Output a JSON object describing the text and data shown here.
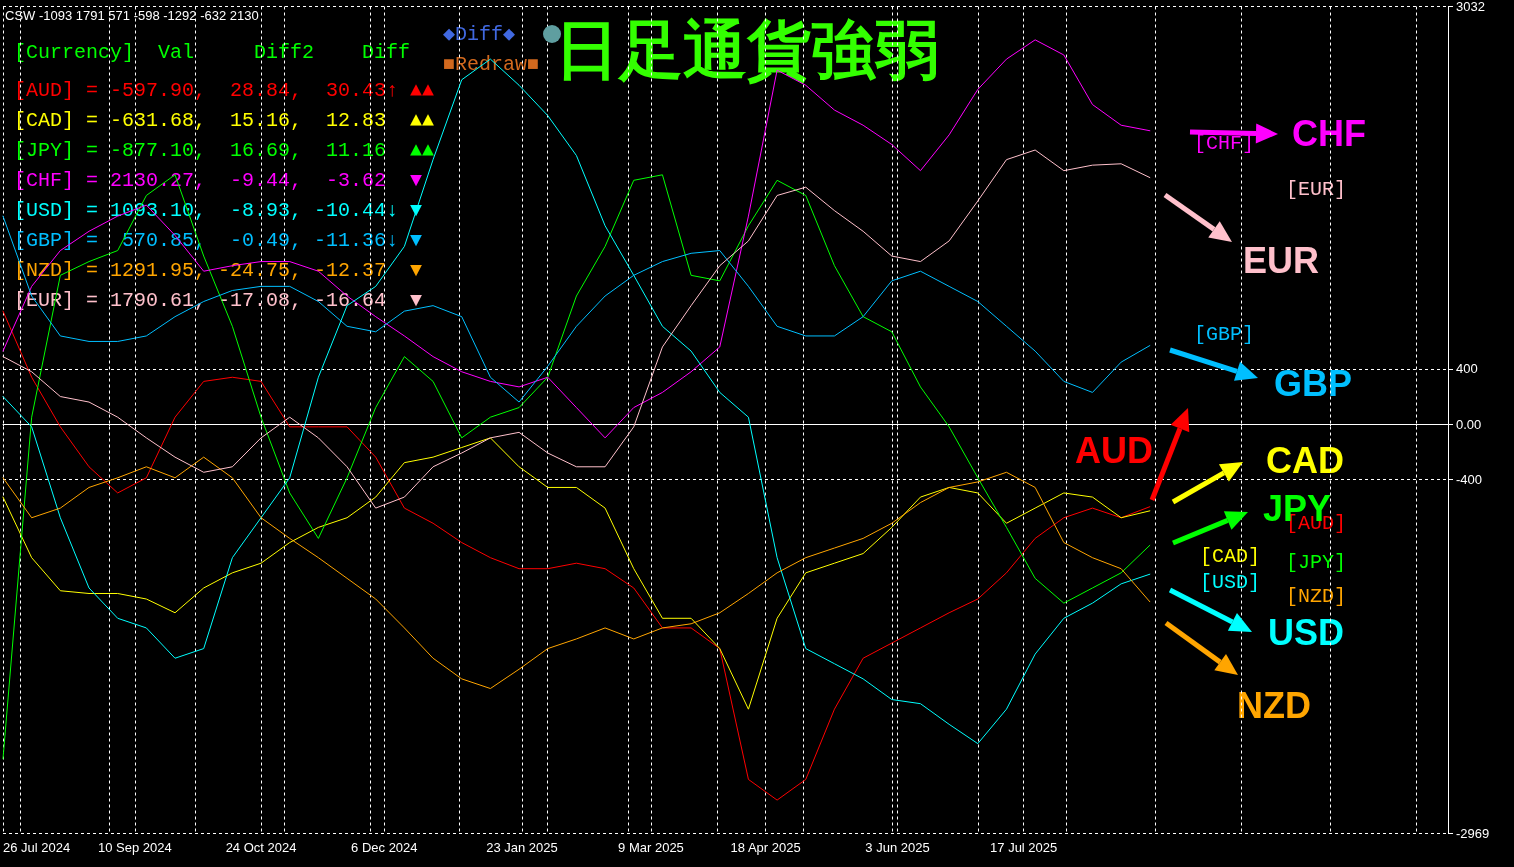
{
  "chart_data": {
    "type": "line",
    "title": "日足通貨強弱",
    "x": [
      "2024-07-26",
      "2024-08-05",
      "2024-08-15",
      "2024-08-25",
      "2024-09-04",
      "2024-09-14",
      "2024-09-24",
      "2024-10-04",
      "2024-10-14",
      "2024-10-24",
      "2024-11-03",
      "2024-11-13",
      "2024-11-23",
      "2024-12-03",
      "2024-12-13",
      "2024-12-23",
      "2025-01-02",
      "2025-01-12",
      "2025-01-22",
      "2025-02-01",
      "2025-02-11",
      "2025-02-21",
      "2025-03-03",
      "2025-03-13",
      "2025-03-23",
      "2025-04-02",
      "2025-04-12",
      "2025-04-22",
      "2025-05-02",
      "2025-05-12",
      "2025-05-22",
      "2025-06-01",
      "2025-06-11",
      "2025-06-21",
      "2025-07-01",
      "2025-07-11",
      "2025-07-21",
      "2025-07-31",
      "2025-08-10",
      "2025-08-20",
      "2025-08-30"
    ],
    "series": [
      {
        "name": "AUD",
        "color": "#ff0000",
        "values": [
          820,
          340,
          -20,
          -310,
          -500,
          -390,
          50,
          310,
          340,
          310,
          -20,
          -20,
          -20,
          -240,
          -610,
          -720,
          -860,
          -970,
          -1050,
          -1050,
          -1010,
          -1050,
          -1190,
          -1480,
          -1480,
          -1630,
          -2580,
          -2730,
          -2580,
          -2070,
          -1700,
          -1590,
          -1480,
          -1370,
          -1270,
          -1080,
          -830,
          -680,
          -610,
          -680,
          -600
        ]
      },
      {
        "name": "CAD",
        "color": "#ffff00",
        "values": [
          -530,
          -970,
          -1210,
          -1230,
          -1230,
          -1270,
          -1370,
          -1190,
          -1080,
          -1010,
          -860,
          -750,
          -680,
          -530,
          -280,
          -240,
          -170,
          -100,
          -310,
          -460,
          -460,
          -610,
          -1050,
          -1410,
          -1410,
          -1630,
          -2070,
          -1410,
          -1080,
          -1010,
          -940,
          -750,
          -530,
          -460,
          -500,
          -720,
          -610,
          -500,
          -530,
          -680,
          -630
        ]
      },
      {
        "name": "JPY",
        "color": "#00ff00",
        "values": [
          -2430,
          50,
          1080,
          1180,
          1260,
          1660,
          1810,
          1220,
          710,
          50,
          -500,
          -830,
          -390,
          120,
          490,
          310,
          -100,
          50,
          120,
          340,
          930,
          1290,
          1770,
          1810,
          1080,
          1040,
          1440,
          1770,
          1660,
          1150,
          780,
          670,
          270,
          -20,
          -390,
          -750,
          -1120,
          -1300,
          -1190,
          -1080,
          -880
        ]
      },
      {
        "name": "CHF",
        "color": "#ff00ff",
        "values": [
          530,
          1000,
          1260,
          1400,
          1510,
          1590,
          1370,
          1110,
          1150,
          1180,
          1180,
          1110,
          930,
          780,
          640,
          490,
          380,
          310,
          270,
          340,
          120,
          -100,
          120,
          230,
          380,
          560,
          1510,
          2570,
          2460,
          2280,
          2170,
          2030,
          1840,
          2100,
          2430,
          2650,
          2790,
          2680,
          2320,
          2170,
          2130
        ]
      },
      {
        "name": "USD",
        "color": "#00ffff",
        "values": [
          200,
          -20,
          -680,
          -1190,
          -1410,
          -1480,
          -1700,
          -1630,
          -970,
          -680,
          -390,
          340,
          860,
          1000,
          1290,
          1920,
          2500,
          2650,
          2460,
          2240,
          1950,
          1440,
          1080,
          710,
          530,
          230,
          50,
          -970,
          -1630,
          -1740,
          -1850,
          -2000,
          -2030,
          -2180,
          -2320,
          -2070,
          -1670,
          -1410,
          -1300,
          -1160,
          -1090
        ]
      },
      {
        "name": "GBP",
        "color": "#00bfff",
        "values": [
          1510,
          930,
          640,
          600,
          600,
          640,
          780,
          890,
          970,
          1000,
          1000,
          890,
          710,
          670,
          820,
          860,
          780,
          340,
          160,
          420,
          710,
          930,
          1080,
          1180,
          1240,
          1260,
          1000,
          710,
          640,
          640,
          780,
          1040,
          1110,
          1000,
          890,
          710,
          530,
          310,
          230,
          450,
          570
        ]
      },
      {
        "name": "NZD",
        "color": "#ffa500",
        "values": [
          -390,
          -680,
          -610,
          -460,
          -390,
          -310,
          -390,
          -240,
          -390,
          -680,
          -830,
          -970,
          -1120,
          -1270,
          -1480,
          -1700,
          -1850,
          -1920,
          -1780,
          -1630,
          -1560,
          -1480,
          -1560,
          -1480,
          -1450,
          -1370,
          -1230,
          -1080,
          -970,
          -900,
          -830,
          -720,
          -570,
          -460,
          -420,
          -350,
          -460,
          -860,
          -970,
          -1050,
          -1290
        ]
      },
      {
        "name": "EUR",
        "color": "#ffc0cb",
        "values": [
          490,
          380,
          200,
          160,
          50,
          -100,
          -240,
          -350,
          -310,
          -100,
          50,
          -100,
          -310,
          -610,
          -530,
          -310,
          -210,
          -100,
          -60,
          -210,
          -310,
          -310,
          -20,
          560,
          860,
          1150,
          1330,
          1660,
          1720,
          1550,
          1400,
          1220,
          1180,
          1330,
          1620,
          1920,
          1990,
          1840,
          1880,
          1890,
          1790
        ]
      }
    ],
    "xlim": [
      "2024-07-26",
      "2025-12-12"
    ],
    "xticks": [
      {
        "value": "2024-07-26",
        "label": "26 Jul 2024"
      },
      {
        "value": "2024-08-01",
        "label": null
      },
      {
        "value": "2024-09-01",
        "label": null
      },
      {
        "value": "2024-09-10",
        "label": "10 Sep 2024"
      },
      {
        "value": "2024-10-01",
        "label": null
      },
      {
        "value": "2024-10-24",
        "label": "24 Oct 2024"
      },
      {
        "value": "2024-11-01",
        "label": null
      },
      {
        "value": "2024-12-01",
        "label": null
      },
      {
        "value": "2024-12-06",
        "label": "6 Dec 2024"
      },
      {
        "value": "2025-01-01",
        "label": null
      },
      {
        "value": "2025-01-23",
        "label": "23 Jan 2025"
      },
      {
        "value": "2025-02-01",
        "label": null
      },
      {
        "value": "2025-03-01",
        "label": null
      },
      {
        "value": "2025-03-09",
        "label": "9 Mar 2025"
      },
      {
        "value": "2025-04-01",
        "label": null
      },
      {
        "value": "2025-04-18",
        "label": "18 Apr 2025"
      },
      {
        "value": "2025-05-01",
        "label": null
      },
      {
        "value": "2025-06-01",
        "label": null
      },
      {
        "value": "2025-06-03",
        "label": "3 Jun 2025"
      },
      {
        "value": "2025-07-01",
        "label": null
      },
      {
        "value": "2025-07-17",
        "label": "17 Jul 2025"
      },
      {
        "value": "2025-08-01",
        "label": null
      },
      {
        "value": "2025-09-01",
        "label": null
      },
      {
        "value": "2025-10-01",
        "label": null
      },
      {
        "value": "2025-11-01",
        "label": null
      },
      {
        "value": "2025-12-01",
        "label": null
      }
    ],
    "ylim": [
      -2969,
      3032
    ],
    "yticks": [
      -2969,
      -400,
      {
        "value": 0,
        "label": "0.00"
      },
      400,
      3032
    ],
    "grid": true,
    "legend": "right",
    "annotations": [
      "CSW -1093 1791 571 -598 -1292 -632 2130",
      "[Currency]  Val     Diff2    Diff",
      "[AUD] = -597.90,  28.84,  30.43↑ ▲▲",
      "[CAD] = -631.68,  15.16,  12.83  ▲▲",
      "[JPY] = -877.10,  16.69,  11.16  ▲▲",
      "[CHF] = 2130.27,  -9.44,  -3.62  ▼",
      "[USD] = 1093.10,  -8.93, -10.44↓ ▼",
      "[GBP] =  570.85,  -0.49, -11.36↓ ▼",
      "[NZD] = 1291.95, -24.75, -12.37  ▼",
      "[EUR] = 1790.61, -17.08, -16.64  ▼",
      "◆Diff◆",
      "■Redraw■",
      "[CHF]",
      "[EUR]",
      "[GBP]",
      "[CAD]",
      "[AUD]",
      "[JPY]",
      "[USD]",
      "[NZD]"
    ]
  }
}
